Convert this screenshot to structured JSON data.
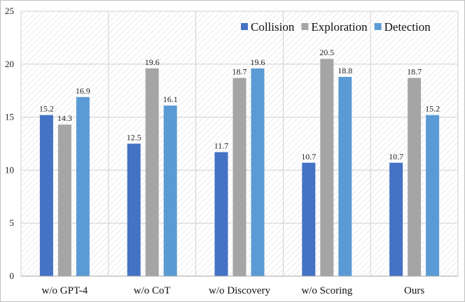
{
  "chart_data": {
    "type": "bar",
    "categories": [
      "w/o GPT-4",
      "w/o CoT",
      "w/o Discovery",
      "w/o Scoring",
      "Ours"
    ],
    "series": [
      {
        "name": "Collision",
        "color": "#4472c4",
        "values": [
          15.2,
          12.5,
          11.7,
          10.7,
          10.7
        ]
      },
      {
        "name": "Exploration",
        "color": "#a5a5a5",
        "values": [
          14.3,
          19.6,
          18.7,
          20.5,
          18.7
        ]
      },
      {
        "name": "Detection",
        "color": "#5b9bd5",
        "values": [
          16.9,
          16.1,
          19.6,
          18.8,
          15.2
        ]
      }
    ],
    "ylim": [
      0,
      25
    ],
    "yticks": [
      0,
      5,
      10,
      15,
      20,
      25
    ],
    "title": "",
    "xlabel": "",
    "ylabel": "",
    "grid": true,
    "legend_position": "top-right"
  }
}
